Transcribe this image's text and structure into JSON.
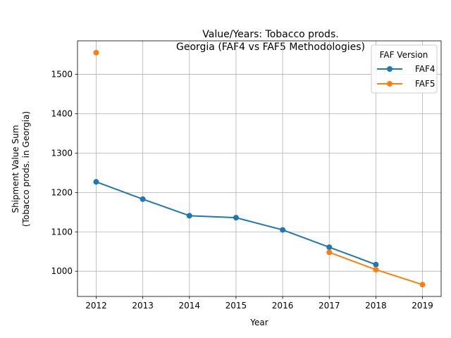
{
  "chart_data": {
    "type": "line",
    "title_line1": "Value/Years: Tobacco prods.",
    "title_line2": "Georgia (FAF4 vs FAF5 Methodologies)",
    "xlabel": "Year",
    "ylabel_line1": "Shipment Value Sum",
    "ylabel_line2": "(Tobacco prods. in Georgia)",
    "x_ticks": [
      "2012",
      "2013",
      "2014",
      "2015",
      "2016",
      "2017",
      "2018",
      "2019"
    ],
    "y_ticks": [
      "1000",
      "1100",
      "1200",
      "1300",
      "1400",
      "1500"
    ],
    "xlim": [
      2011.6,
      2019.4
    ],
    "ylim": [
      936,
      1585
    ],
    "grid": true,
    "legend": {
      "title": "FAF Version",
      "position": "top-right"
    },
    "series": [
      {
        "name": "FAF4",
        "color": "#1f77b4",
        "points": [
          {
            "x": 2012,
            "y": 1227
          },
          {
            "x": 2013,
            "y": 1183
          },
          {
            "x": 2014,
            "y": 1141
          },
          {
            "x": 2015,
            "y": 1136
          },
          {
            "x": 2016,
            "y": 1105
          },
          {
            "x": 2017,
            "y": 1061
          },
          {
            "x": 2018,
            "y": 1017
          }
        ]
      },
      {
        "name": "FAF5",
        "color": "#ff7f0e",
        "points": [
          {
            "x": 2012,
            "y": 1555
          },
          {
            "x": 2017,
            "y": 1048
          },
          {
            "x": 2018,
            "y": 1004
          },
          {
            "x": 2019,
            "y": 966
          }
        ],
        "segments": [
          [
            0
          ],
          [
            1,
            2,
            3
          ]
        ]
      }
    ]
  }
}
